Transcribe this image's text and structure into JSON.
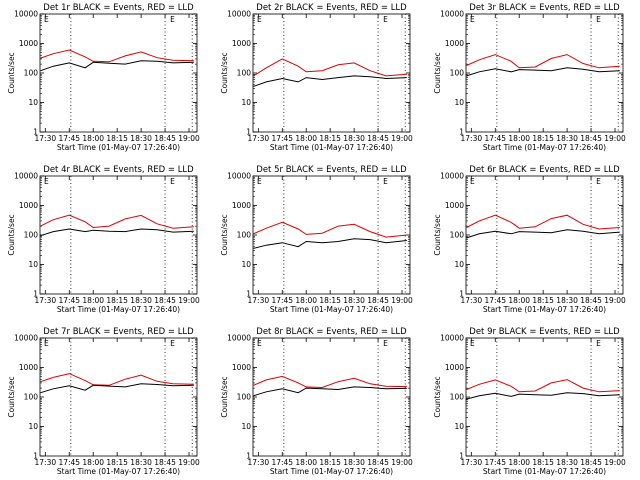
{
  "colors": {
    "events": "#000000",
    "lld": "#e00000",
    "background": "#ffffff"
  },
  "chart_data": [
    {
      "type": "line",
      "title": "Det 1r BLACK = Events, RED = LLD",
      "xlabel": "Start Time (01-May-07 17:26:40)",
      "ylabel": "Counts/sec",
      "x_ticks": [
        "17:30",
        "17:45",
        "18:00",
        "18:15",
        "18:30",
        "18:45",
        "19:00"
      ],
      "y_ticks": [
        "1",
        "10",
        "100",
        "1000",
        "10000"
      ],
      "yscale": "log",
      "ylim": [
        1,
        10000
      ],
      "markers": [
        "E",
        "E"
      ],
      "series": [
        {
          "color": "red",
          "x": [
            "17:27",
            "17:35",
            "17:45",
            "17:55",
            "18:00",
            "18:10",
            "18:20",
            "18:30",
            "18:40",
            "18:50",
            "19:03"
          ],
          "values": [
            320,
            450,
            600,
            350,
            250,
            240,
            380,
            520,
            330,
            270,
            260
          ]
        },
        {
          "color": "black",
          "x": [
            "17:27",
            "17:35",
            "17:45",
            "17:55",
            "18:00",
            "18:10",
            "18:20",
            "18:30",
            "18:40",
            "18:50",
            "19:03"
          ],
          "values": [
            120,
            170,
            220,
            150,
            230,
            215,
            200,
            260,
            250,
            220,
            230
          ]
        }
      ]
    },
    {
      "type": "line",
      "title": "Det 2r BLACK = Events, RED = LLD",
      "xlabel": "Start Time (01-May-07 17:26:40)",
      "ylabel": "Counts/sec",
      "x_ticks": [
        "17:30",
        "17:45",
        "18:00",
        "18:15",
        "18:30",
        "18:45",
        "19:00"
      ],
      "y_ticks": [
        "1",
        "10",
        "100",
        "1000",
        "10000"
      ],
      "yscale": "log",
      "ylim": [
        1,
        10000
      ],
      "markers": [
        "E",
        "E"
      ],
      "series": [
        {
          "color": "red",
          "x": [
            "17:27",
            "17:35",
            "17:45",
            "17:55",
            "18:00",
            "18:10",
            "18:20",
            "18:30",
            "18:40",
            "18:50",
            "19:03"
          ],
          "values": [
            80,
            150,
            300,
            170,
            110,
            120,
            190,
            220,
            120,
            80,
            90
          ]
        },
        {
          "color": "black",
          "x": [
            "17:27",
            "17:35",
            "17:45",
            "17:55",
            "18:00",
            "18:10",
            "18:20",
            "18:30",
            "18:40",
            "18:50",
            "19:03"
          ],
          "values": [
            35,
            50,
            65,
            50,
            70,
            60,
            70,
            80,
            75,
            65,
            70
          ]
        }
      ]
    },
    {
      "type": "line",
      "title": "Det 3r BLACK = Events, RED = LLD",
      "xlabel": "Start Time (01-May-07 17:26:40)",
      "ylabel": "Counts/sec",
      "x_ticks": [
        "17:30",
        "17:45",
        "18:00",
        "18:15",
        "18:30",
        "18:45",
        "19:00"
      ],
      "y_ticks": [
        "1",
        "10",
        "100",
        "1000",
        "10000"
      ],
      "yscale": "log",
      "ylim": [
        1,
        10000
      ],
      "markers": [
        "E",
        "E"
      ],
      "series": [
        {
          "color": "red",
          "x": [
            "17:27",
            "17:35",
            "17:45",
            "17:55",
            "18:00",
            "18:10",
            "18:20",
            "18:30",
            "18:40",
            "18:50",
            "19:03"
          ],
          "values": [
            180,
            280,
            420,
            250,
            150,
            160,
            310,
            420,
            210,
            150,
            170
          ]
        },
        {
          "color": "black",
          "x": [
            "17:27",
            "17:35",
            "17:45",
            "17:55",
            "18:00",
            "18:10",
            "18:20",
            "18:30",
            "18:40",
            "18:50",
            "19:03"
          ],
          "values": [
            80,
            110,
            140,
            110,
            130,
            125,
            120,
            150,
            135,
            110,
            120
          ]
        }
      ]
    },
    {
      "type": "line",
      "title": "Det 4r BLACK = Events, RED = LLD",
      "xlabel": "Start Time (01-May-07 17:26:40)",
      "ylabel": "Counts/sec",
      "x_ticks": [
        "17:30",
        "17:45",
        "18:00",
        "18:15",
        "18:30",
        "18:45",
        "19:00"
      ],
      "y_ticks": [
        "1",
        "10",
        "100",
        "1000",
        "10000"
      ],
      "yscale": "log",
      "ylim": [
        1,
        10000
      ],
      "markers": [
        "E",
        "E"
      ],
      "series": [
        {
          "color": "red",
          "x": [
            "17:27",
            "17:35",
            "17:45",
            "17:55",
            "18:00",
            "18:10",
            "18:20",
            "18:30",
            "18:40",
            "18:50",
            "19:03"
          ],
          "values": [
            200,
            330,
            470,
            280,
            180,
            200,
            350,
            460,
            240,
            170,
            190
          ]
        },
        {
          "color": "black",
          "x": [
            "17:27",
            "17:35",
            "17:45",
            "17:55",
            "18:00",
            "18:10",
            "18:20",
            "18:30",
            "18:40",
            "18:50",
            "19:03"
          ],
          "values": [
            95,
            130,
            160,
            130,
            145,
            135,
            130,
            160,
            150,
            125,
            135
          ]
        }
      ]
    },
    {
      "type": "line",
      "title": "Det 5r BLACK = Events, RED = LLD",
      "xlabel": "Start Time (01-May-07 17:26:40)",
      "ylabel": "Counts/sec",
      "x_ticks": [
        "17:30",
        "17:45",
        "18:00",
        "18:15",
        "18:30",
        "18:45",
        "19:00"
      ],
      "y_ticks": [
        "1",
        "10",
        "100",
        "1000",
        "10000"
      ],
      "yscale": "log",
      "ylim": [
        1,
        10000
      ],
      "markers": [
        "E",
        "E"
      ],
      "series": [
        {
          "color": "red",
          "x": [
            "17:27",
            "17:35",
            "17:45",
            "17:55",
            "18:00",
            "18:10",
            "18:20",
            "18:30",
            "18:40",
            "18:50",
            "19:03"
          ],
          "values": [
            110,
            170,
            270,
            160,
            105,
            115,
            200,
            230,
            130,
            85,
            100
          ]
        },
        {
          "color": "black",
          "x": [
            "17:27",
            "17:35",
            "17:45",
            "17:55",
            "18:00",
            "18:10",
            "18:20",
            "18:30",
            "18:40",
            "18:50",
            "19:03"
          ],
          "values": [
            35,
            45,
            55,
            40,
            60,
            55,
            60,
            75,
            70,
            55,
            65
          ]
        }
      ]
    },
    {
      "type": "line",
      "title": "Det 6r BLACK = Events, RED = LLD",
      "xlabel": "Start Time (01-May-07 17:26:40)",
      "ylabel": "Counts/sec",
      "x_ticks": [
        "17:30",
        "17:45",
        "18:00",
        "18:15",
        "18:30",
        "18:45",
        "19:00"
      ],
      "y_ticks": [
        "1",
        "10",
        "100",
        "1000",
        "10000"
      ],
      "yscale": "log",
      "ylim": [
        1,
        10000
      ],
      "markers": [
        "E",
        "E"
      ],
      "series": [
        {
          "color": "red",
          "x": [
            "17:27",
            "17:35",
            "17:45",
            "17:55",
            "18:00",
            "18:10",
            "18:20",
            "18:30",
            "18:40",
            "18:50",
            "19:03"
          ],
          "values": [
            180,
            300,
            470,
            270,
            170,
            190,
            360,
            470,
            230,
            160,
            180
          ]
        },
        {
          "color": "black",
          "x": [
            "17:27",
            "17:35",
            "17:45",
            "17:55",
            "18:00",
            "18:10",
            "18:20",
            "18:30",
            "18:40",
            "18:50",
            "19:03"
          ],
          "values": [
            80,
            110,
            135,
            110,
            130,
            125,
            120,
            150,
            135,
            110,
            125
          ]
        }
      ]
    },
    {
      "type": "line",
      "title": "Det 7r BLACK = Events, RED = LLD",
      "xlabel": "Start Time (01-May-07 17:26:40)",
      "ylabel": "Counts/sec",
      "x_ticks": [
        "17:30",
        "17:45",
        "18:00",
        "18:15",
        "18:30",
        "18:45",
        "19:00"
      ],
      "y_ticks": [
        "1",
        "10",
        "100",
        "1000",
        "10000"
      ],
      "yscale": "log",
      "ylim": [
        1,
        10000
      ],
      "markers": [
        "E",
        "E"
      ],
      "series": [
        {
          "color": "red",
          "x": [
            "17:27",
            "17:35",
            "17:45",
            "17:55",
            "18:00",
            "18:10",
            "18:20",
            "18:30",
            "18:40",
            "18:50",
            "19:03"
          ],
          "values": [
            330,
            460,
            620,
            360,
            260,
            250,
            400,
            550,
            340,
            280,
            270
          ]
        },
        {
          "color": "black",
          "x": [
            "17:27",
            "17:35",
            "17:45",
            "17:55",
            "18:00",
            "18:10",
            "18:20",
            "18:30",
            "18:40",
            "18:50",
            "19:03"
          ],
          "values": [
            140,
            190,
            240,
            170,
            250,
            235,
            220,
            280,
            265,
            240,
            250
          ]
        }
      ]
    },
    {
      "type": "line",
      "title": "Det 8r BLACK = Events, RED = LLD",
      "xlabel": "Start Time (01-May-07 17:26:40)",
      "ylabel": "Counts/sec",
      "x_ticks": [
        "17:30",
        "17:45",
        "18:00",
        "18:15",
        "18:30",
        "18:45",
        "19:00"
      ],
      "y_ticks": [
        "1",
        "10",
        "100",
        "1000",
        "10000"
      ],
      "yscale": "log",
      "ylim": [
        1,
        10000
      ],
      "markers": [
        "E",
        "E"
      ],
      "series": [
        {
          "color": "red",
          "x": [
            "17:27",
            "17:35",
            "17:45",
            "17:55",
            "18:00",
            "18:10",
            "18:20",
            "18:30",
            "18:40",
            "18:50",
            "19:03"
          ],
          "values": [
            250,
            380,
            500,
            300,
            220,
            210,
            330,
            430,
            280,
            230,
            225
          ]
        },
        {
          "color": "black",
          "x": [
            "17:27",
            "17:35",
            "17:45",
            "17:55",
            "18:00",
            "18:10",
            "18:20",
            "18:30",
            "18:40",
            "18:50",
            "19:03"
          ],
          "values": [
            110,
            150,
            190,
            140,
            200,
            190,
            180,
            220,
            210,
            190,
            195
          ]
        }
      ]
    },
    {
      "type": "line",
      "title": "Det 9r BLACK = Events, RED = LLD",
      "xlabel": "Start Time (01-May-07 17:26:40)",
      "ylabel": "Counts/sec",
      "x_ticks": [
        "17:30",
        "17:45",
        "18:00",
        "18:15",
        "18:30",
        "18:45",
        "19:00"
      ],
      "y_ticks": [
        "1",
        "10",
        "100",
        "1000",
        "10000"
      ],
      "yscale": "log",
      "ylim": [
        1,
        10000
      ],
      "markers": [
        "E",
        "E"
      ],
      "series": [
        {
          "color": "red",
          "x": [
            "17:27",
            "17:35",
            "17:45",
            "17:55",
            "18:00",
            "18:10",
            "18:20",
            "18:30",
            "18:40",
            "18:50",
            "19:03"
          ],
          "values": [
            180,
            270,
            380,
            230,
            150,
            160,
            300,
            390,
            200,
            150,
            165
          ]
        },
        {
          "color": "black",
          "x": [
            "17:27",
            "17:35",
            "17:45",
            "17:55",
            "18:00",
            "18:10",
            "18:20",
            "18:30",
            "18:40",
            "18:50",
            "19:03"
          ],
          "values": [
            85,
            110,
            135,
            105,
            125,
            120,
            115,
            140,
            130,
            110,
            120
          ]
        }
      ]
    }
  ]
}
